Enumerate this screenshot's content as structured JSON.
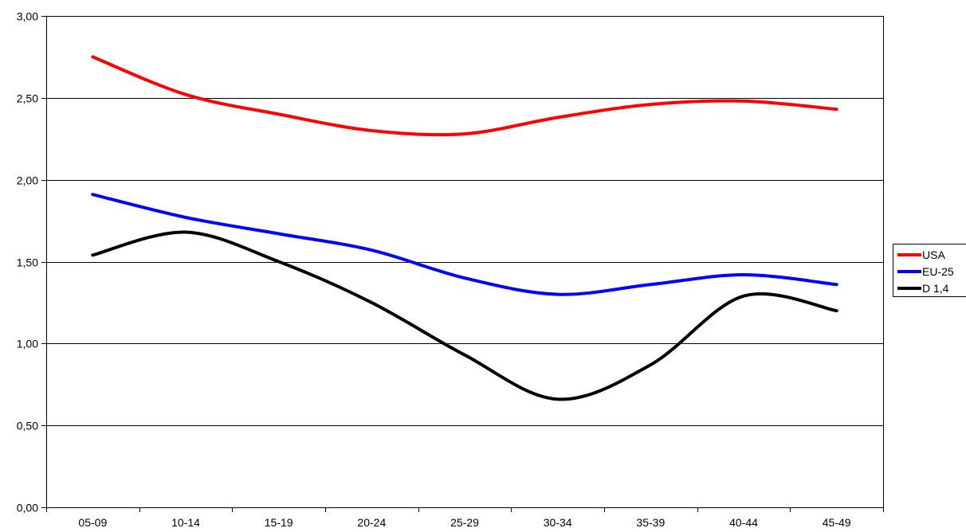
{
  "chart_data": {
    "type": "line",
    "title": "",
    "xlabel": "",
    "ylabel": "",
    "categories": [
      "05-09",
      "10-14",
      "15-19",
      "20-24",
      "25-29",
      "30-34",
      "35-39",
      "40-44",
      "45-49"
    ],
    "ylim": [
      0,
      3
    ],
    "yticks": [
      0,
      0.5,
      1,
      1.5,
      2,
      2.5,
      3
    ],
    "ytick_labels": [
      "0,00",
      "0,50",
      "1,00",
      "1,50",
      "2,00",
      "2,50",
      "3,00"
    ],
    "grid": "horizontal",
    "legend_position": "right",
    "series": [
      {
        "name": "USA",
        "color": "#ff0000",
        "values": [
          2.75,
          2.52,
          2.4,
          2.3,
          2.28,
          2.38,
          2.46,
          2.48,
          2.43
        ]
      },
      {
        "name": "EU-25",
        "color": "#0000ff",
        "values": [
          1.91,
          1.77,
          1.67,
          1.57,
          1.4,
          1.3,
          1.36,
          1.42,
          1.36
        ]
      },
      {
        "name": "D 1,4",
        "color": "#000000",
        "values": [
          1.54,
          1.68,
          1.5,
          1.25,
          0.93,
          0.66,
          0.87,
          1.29,
          1.2
        ]
      }
    ]
  }
}
